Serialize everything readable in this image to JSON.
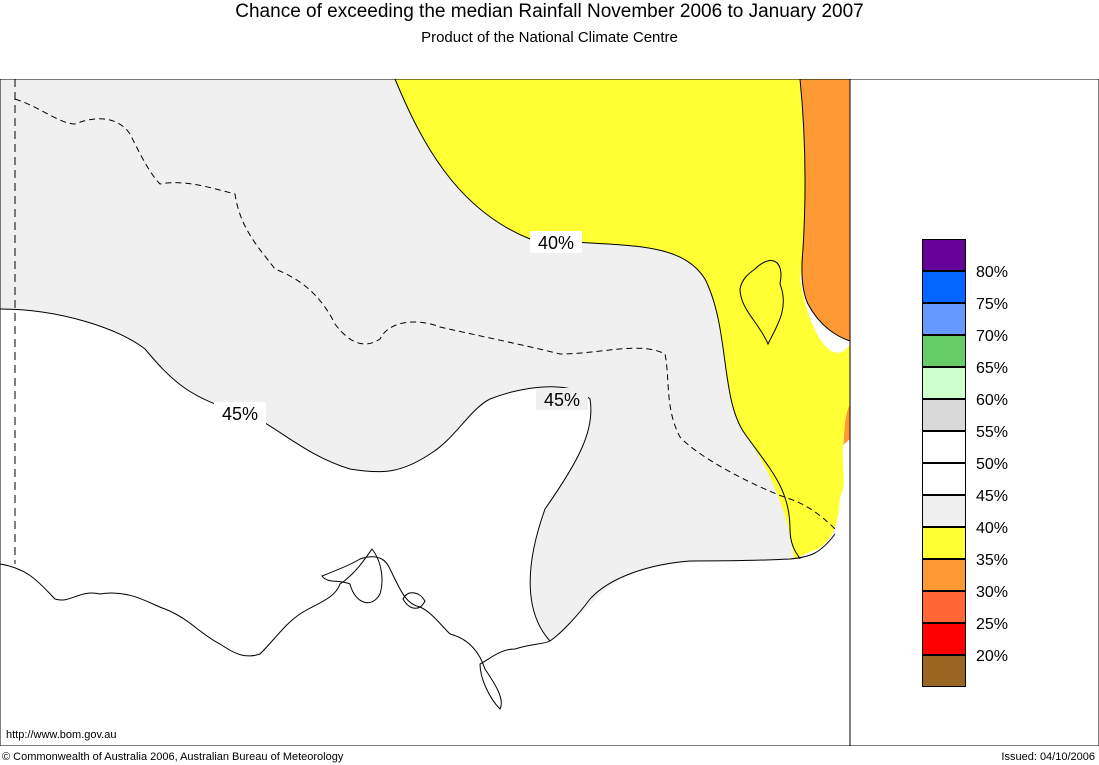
{
  "header": {
    "title": "Chance of exceeding the median Rainfall November 2006 to January 2007",
    "subtitle": "Product of the National Climate Centre"
  },
  "map": {
    "contour_labels": [
      "40%",
      "45%",
      "45%"
    ],
    "legend": {
      "swatches": [
        "#660099",
        "#0066ff",
        "#6699ff",
        "#66cc66",
        "#ccffcc",
        "#d9d9d9",
        "#ffffff",
        "#ffffff",
        "#f0f0f0",
        "#ffff33",
        "#ff9933",
        "#ff6633",
        "#ff0000",
        "#996622"
      ],
      "labels": [
        "80%",
        "75%",
        "70%",
        "65%",
        "60%",
        "55%",
        "50%",
        "45%",
        "40%",
        "35%",
        "30%",
        "25%",
        "20%"
      ]
    },
    "region_colors": {
      "40_45": "#f0f0f0",
      "35_40": "#ffff33",
      "30_35": "#ff9933",
      "45_50": "#ffffff"
    }
  },
  "footer": {
    "url": "http://www.bom.gov.au",
    "copyright": "© Commonwealth of Australia 2006, Australian Bureau of Meteorology",
    "issued": "Issued: 04/10/2006"
  }
}
